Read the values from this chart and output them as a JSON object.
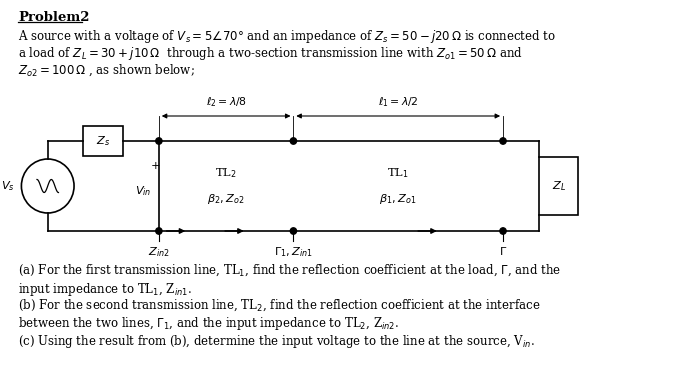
{
  "title": "Problem2",
  "bg_color": "#ffffff",
  "text_color": "#000000"
}
